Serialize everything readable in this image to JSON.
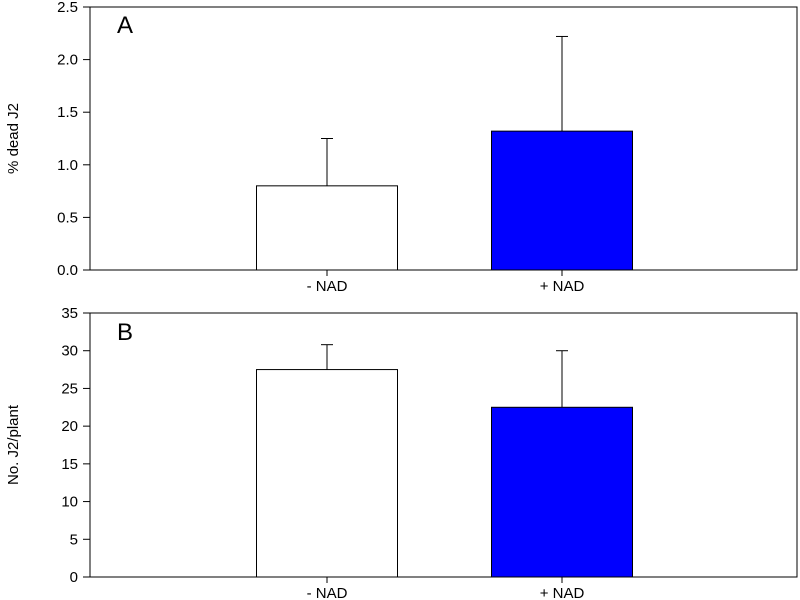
{
  "chart_data": [
    {
      "type": "bar",
      "panel_label": "A",
      "categories": [
        "- NAD",
        "+ NAD"
      ],
      "values": [
        0.8,
        1.32
      ],
      "error_upper": [
        1.25,
        2.22
      ],
      "bar_colors": [
        "#ffffff",
        "#0000ff"
      ],
      "ylabel": "% dead J2",
      "xlabel": "",
      "ylim": [
        0,
        2.5
      ],
      "yticks": [
        "0.0",
        "0.5",
        "1.0",
        "1.5",
        "2.0",
        "2.5"
      ],
      "grid": false
    },
    {
      "type": "bar",
      "panel_label": "B",
      "categories": [
        "- NAD",
        "+ NAD"
      ],
      "values": [
        27.5,
        22.5
      ],
      "error_upper": [
        30.8,
        30.0
      ],
      "bar_colors": [
        "#ffffff",
        "#0000ff"
      ],
      "ylabel": "No. J2/plant",
      "xlabel": "",
      "ylim": [
        0,
        35
      ],
      "yticks": [
        "0",
        "5",
        "10",
        "15",
        "20",
        "25",
        "30",
        "35"
      ],
      "grid": false
    }
  ]
}
